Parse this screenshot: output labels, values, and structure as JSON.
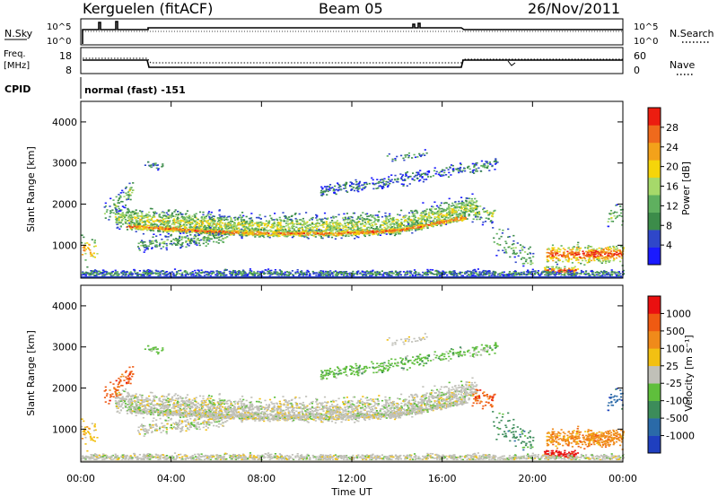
{
  "header": {
    "station": "Kerguelen (fitACF)",
    "beam": "Beam 05",
    "date": "26/Nov/2011"
  },
  "noise_panel": {
    "left_label": "N.Sky",
    "right_label": "N.Search",
    "left_ticks": [
      "10^5",
      "10^0"
    ],
    "right_ticks": [
      "10^5",
      "10^0"
    ]
  },
  "freq_panel": {
    "left_label_line1": "Freq.",
    "left_label_line2": "[MHz]",
    "right_label": "Nave",
    "left_ticks": [
      "18",
      "8"
    ],
    "right_ticks": [
      "60",
      "0"
    ]
  },
  "cpid": {
    "label": "CPID",
    "value": "normal (fast) -151"
  },
  "colors": {
    "power_scale": [
      "#1a1aff",
      "#2f47c9",
      "#3c8c4a",
      "#5fb05f",
      "#a6d96a",
      "#f5d50a",
      "#f3a21a",
      "#ef6a1c",
      "#ec1d10"
    ],
    "velocity_scale": [
      "#1f3fbf",
      "#2a6aa8",
      "#3c8c5a",
      "#5fbf3c",
      "#c0c0b8",
      "#f2c012",
      "#f08a1a",
      "#ef5a12",
      "#ea1010"
    ]
  },
  "chart_data": [
    {
      "type": "heatmap",
      "quantity": "power",
      "x": {
        "label": "Time UT",
        "range": [
          0,
          24
        ],
        "ticks": [
          "00:00",
          "04:00",
          "08:00",
          "12:00",
          "16:00",
          "20:00",
          "00:00"
        ]
      },
      "y": {
        "label": "Slant Range [km]",
        "range": [
          200,
          4500
        ],
        "ticks": [
          "4000",
          "3000",
          "2000",
          "1000"
        ]
      },
      "colorbar": {
        "label": "Power [dB]",
        "ticks": [
          "28",
          "24",
          "20",
          "16",
          "12",
          "8",
          "4"
        ],
        "range": [
          0,
          32
        ]
      }
    },
    {
      "type": "heatmap",
      "quantity": "velocity",
      "x": {
        "label": "Time UT",
        "range": [
          0,
          24
        ],
        "ticks": [
          "00:00",
          "04:00",
          "08:00",
          "12:00",
          "16:00",
          "20:00",
          "00:00"
        ]
      },
      "y": {
        "label": "Slant Range [km]",
        "range": [
          200,
          4500
        ],
        "ticks": [
          "4000",
          "3000",
          "2000",
          "1000"
        ]
      },
      "colorbar": {
        "label": "Velocity [m s⁻¹]",
        "ticks": [
          "1000",
          "500",
          "100",
          "25",
          "-25",
          "-100",
          "-500",
          "-1000"
        ]
      }
    }
  ],
  "x_axis": {
    "label": "Time UT",
    "ticks": [
      "00:00",
      "04:00",
      "08:00",
      "12:00",
      "16:00",
      "20:00",
      "00:00"
    ]
  }
}
